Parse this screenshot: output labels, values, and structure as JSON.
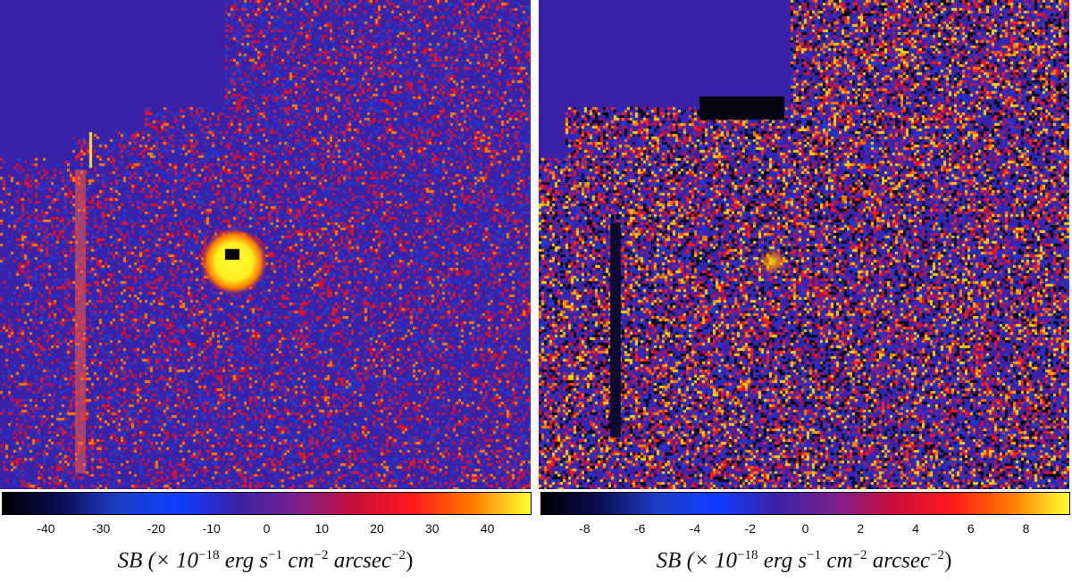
{
  "colormap": {
    "stops": [
      "#000000",
      "#0a0d55",
      "#1f3ec8",
      "#0f3dff",
      "#3a22a8",
      "#7a1f8e",
      "#c80e3a",
      "#ff1a1a",
      "#ff7a00",
      "#ffff33"
    ]
  },
  "panels": [
    {
      "id": "left",
      "style": "bright",
      "ticks": [
        "-40",
        "-30",
        "-20",
        "-10",
        "0",
        "10",
        "20",
        "30",
        "40"
      ],
      "range": [
        -48,
        48
      ],
      "label": {
        "prefix": "SB (× 10",
        "exp1": "−18",
        "mid1": "erg s",
        "exp2": "−1",
        "mid2": "cm",
        "exp3": "−2",
        "mid3": "arcsec",
        "exp4": "−2",
        "suffix": ")"
      }
    },
    {
      "id": "right",
      "style": "noisy",
      "ticks": [
        "-8",
        "-6",
        "-4",
        "-2",
        "0",
        "2",
        "4",
        "6",
        "8"
      ],
      "range": [
        -9.6,
        9.6
      ],
      "label": {
        "prefix": "SB (× 10",
        "exp1": "−18",
        "mid1": "erg s",
        "exp2": "−1",
        "mid2": "cm",
        "exp3": "−2",
        "mid3": "arcsec",
        "exp4": "−2",
        "suffix": ")"
      }
    }
  ]
}
